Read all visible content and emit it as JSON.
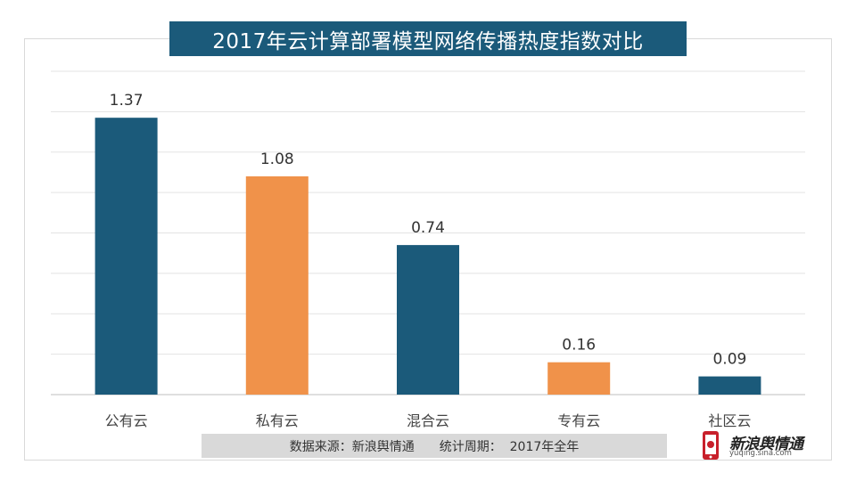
{
  "chart_data": {
    "type": "bar",
    "title": "2017年云计算部署模型网络传播热度指数对比",
    "categories": [
      "公有云",
      "私有云",
      "混合云",
      "专有云",
      "社区云"
    ],
    "values": [
      1.37,
      1.08,
      0.74,
      0.16,
      0.09
    ],
    "value_labels": [
      "1.37",
      "1.08",
      "0.74",
      "0.16",
      "0.09"
    ],
    "colors": [
      "#1b5a7a",
      "#f0924a",
      "#1b5a7a",
      "#f0924a",
      "#1b5a7a"
    ],
    "ylim": [
      0,
      1.6
    ],
    "grid": true,
    "legend": "none",
    "xlabel": "",
    "ylabel": ""
  },
  "footer": {
    "source": "数据来源：新浪舆情通",
    "period": "统计周期：  2017年全年"
  },
  "logo": {
    "name": "新浪舆情通",
    "url_text": "yuqing.sina.com"
  }
}
